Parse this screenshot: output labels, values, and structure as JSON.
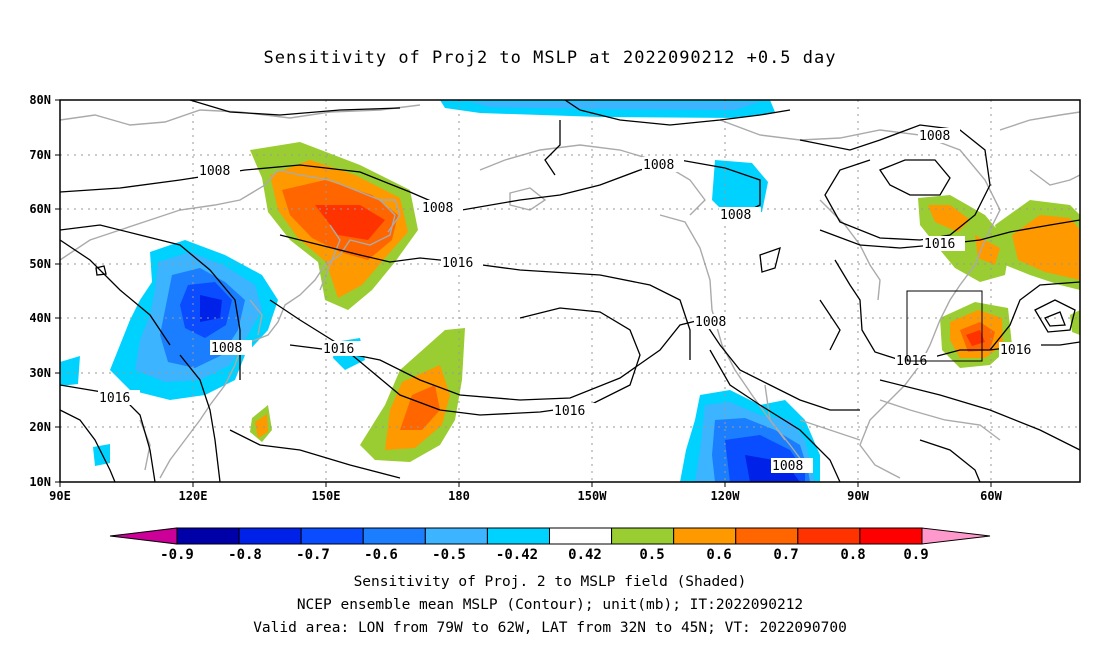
{
  "title": "Sensitivity of Proj2 to MSLP at 2022090212 +0.5 day",
  "lat_labels": [
    "80N",
    "70N",
    "60N",
    "50N",
    "40N",
    "30N",
    "20N",
    "10N"
  ],
  "lon_labels": [
    "90E",
    "120E",
    "150E",
    "180",
    "150W",
    "120W",
    "90W",
    "60W"
  ],
  "contour_labels": {
    "c1": "1008",
    "c2": "1008",
    "c3": "1008",
    "c4": "1008",
    "c5": "1008",
    "c6": "1008",
    "c7": "1008",
    "c8": "1008",
    "c9": "1016",
    "c10": "1016",
    "c11": "1016",
    "c12": "1016",
    "c13": "1016",
    "c14": "1016",
    "c15": "1016"
  },
  "colorbar": {
    "labels": [
      "-0.9",
      "-0.8",
      "-0.7",
      "-0.6",
      "-0.5",
      "-0.42",
      "0.42",
      "0.5",
      "0.6",
      "0.7",
      "0.8",
      "0.9"
    ],
    "colors": [
      "#0000a8",
      "#0022e8",
      "#0a4cff",
      "#1a7eff",
      "#3cb4ff",
      "#00d2ff",
      "#ffffff",
      "#9acd32",
      "#ff9900",
      "#ff6600",
      "#ff3300",
      "#ff0000"
    ],
    "low_end": "#cc0099",
    "high_end": "#ff99cc"
  },
  "captions": {
    "line1": "Sensitivity of Proj. 2 to MSLP field (Shaded)",
    "line2": "NCEP ensemble mean MSLP (Contour); unit(mb); IT:2022090212",
    "line3": "Valid area: LON from 79W to 62W, LAT from 32N to 45N; VT: 2022090700"
  }
}
